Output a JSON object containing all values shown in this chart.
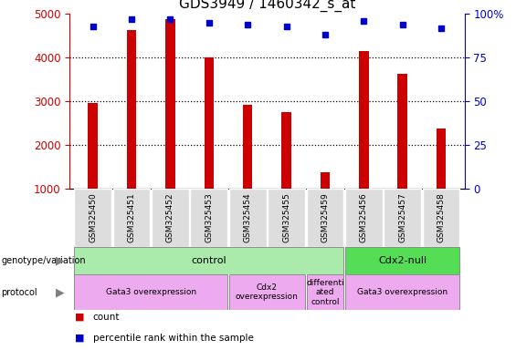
{
  "title": "GDS3949 / 1460342_s_at",
  "samples": [
    "GSM325450",
    "GSM325451",
    "GSM325452",
    "GSM325453",
    "GSM325454",
    "GSM325455",
    "GSM325459",
    "GSM325456",
    "GSM325457",
    "GSM325458"
  ],
  "counts": [
    2970,
    4640,
    4880,
    4000,
    2920,
    2760,
    1380,
    4160,
    3640,
    2380
  ],
  "percentiles": [
    93,
    97,
    97,
    95,
    94,
    93,
    88,
    96,
    94,
    92
  ],
  "ylim_left": [
    1000,
    5000
  ],
  "ylim_right": [
    0,
    100
  ],
  "yticks_left": [
    1000,
    2000,
    3000,
    4000,
    5000
  ],
  "yticks_right": [
    0,
    25,
    50,
    75,
    100
  ],
  "bar_color": "#cc0000",
  "dot_color": "#0000cc",
  "title_fontsize": 11,
  "bar_width": 0.25,
  "genotype_groups": [
    {
      "label": "control",
      "start": 0,
      "end": 7,
      "color": "#aaeaaa"
    },
    {
      "label": "Cdx2-null",
      "start": 7,
      "end": 10,
      "color": "#55dd55"
    }
  ],
  "protocol_groups": [
    {
      "label": "Gata3 overexpression",
      "start": 0,
      "end": 4,
      "color": "#eeaaee"
    },
    {
      "label": "Cdx2\noverexpression",
      "start": 4,
      "end": 6,
      "color": "#eeaaee"
    },
    {
      "label": "differenti\nated\ncontrol",
      "start": 6,
      "end": 7,
      "color": "#eeaaee"
    },
    {
      "label": "Gata3 overexpression",
      "start": 7,
      "end": 10,
      "color": "#eeaaee"
    }
  ]
}
